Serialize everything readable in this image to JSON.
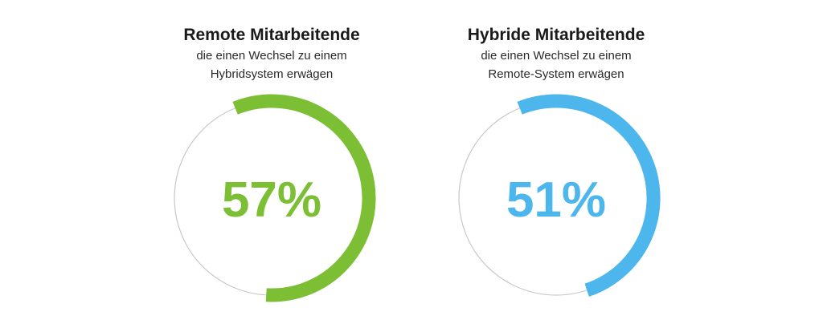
{
  "chart_data": [
    {
      "type": "pie",
      "title": "Remote Mitarbeitende",
      "subtitle_line1": "die einen Wechsel zu einem",
      "subtitle_line2": "Hybridsystem erwägen",
      "value": 57,
      "value_label": "57%",
      "color": "#7cbf34",
      "track_color": "#c8c8c8"
    },
    {
      "type": "pie",
      "title": "Hybride Mitarbeitende",
      "subtitle_line1": "die einen Wechsel zu einem",
      "subtitle_line2": "Remote-System erwägen",
      "value": 51,
      "value_label": "51%",
      "color": "#4db6ec",
      "track_color": "#c8c8c8"
    }
  ]
}
